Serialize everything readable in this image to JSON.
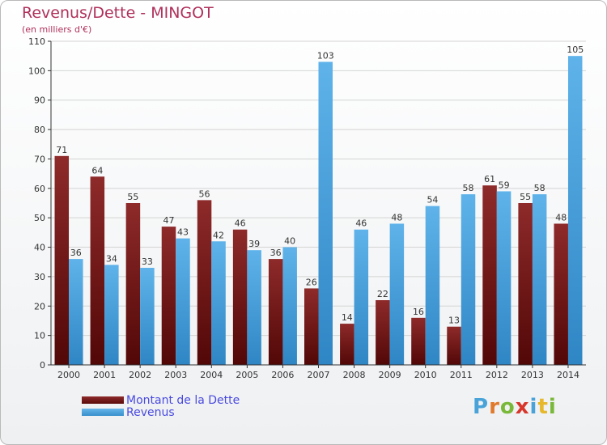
{
  "header": {
    "title": "Revenus/Dette - MINGOT",
    "subtitle": "(en milliers d'€)"
  },
  "brand": {
    "letters": [
      {
        "char": "P",
        "color": "#4aa3d8"
      },
      {
        "char": "r",
        "color": "#e07a2a"
      },
      {
        "char": "o",
        "color": "#7ab83a"
      },
      {
        "char": "x",
        "color": "#d8362a"
      },
      {
        "char": "i",
        "color": "#4aa3d8"
      },
      {
        "char": "t",
        "color": "#e6b82a"
      },
      {
        "char": "i",
        "color": "#7ab83a"
      }
    ]
  },
  "chart_data": {
    "type": "bar",
    "title": "Revenus/Dette - MINGOT",
    "subtitle": "(en milliers d'€)",
    "categories": [
      "2000",
      "2001",
      "2002",
      "2003",
      "2004",
      "2005",
      "2006",
      "2007",
      "2008",
      "2009",
      "2010",
      "2011",
      "2012",
      "2013",
      "2014"
    ],
    "series": [
      {
        "name": "Montant de la Dette",
        "color": "#7a1d1d",
        "values": [
          71,
          64,
          55,
          47,
          56,
          46,
          36,
          26,
          14,
          22,
          16,
          13,
          61,
          55,
          48
        ]
      },
      {
        "name": "Revenus",
        "color": "#4ea6e2",
        "values": [
          36,
          34,
          33,
          43,
          42,
          39,
          40,
          103,
          46,
          48,
          54,
          58,
          59,
          58,
          105
        ]
      }
    ],
    "ylim": [
      0,
      110
    ],
    "yticks": [
      0,
      10,
      20,
      30,
      40,
      50,
      60,
      70,
      80,
      90,
      100,
      110
    ],
    "grid": true,
    "legend": "bottom-left"
  }
}
